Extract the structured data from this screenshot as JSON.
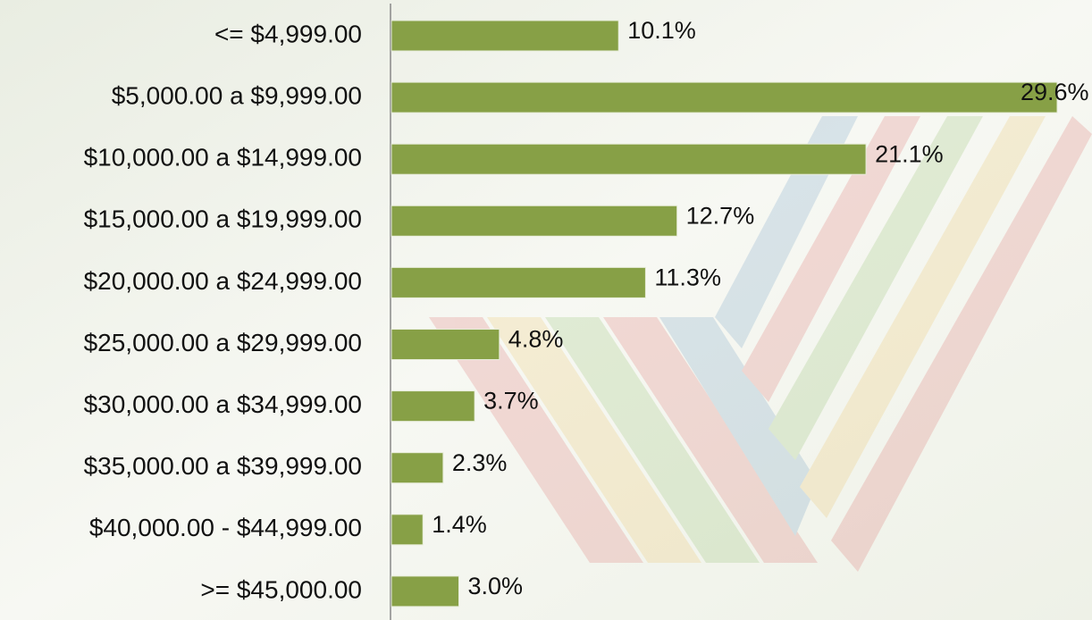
{
  "chart_data": {
    "type": "bar",
    "orientation": "horizontal",
    "categories": [
      "<= $4,999.00",
      "$5,000.00 a $9,999.00",
      "$10,000.00 a $14,999.00",
      "$15,000.00 a $19,999.00",
      "$20,000.00 a $24,999.00",
      "$25,000.00 a $29,999.00",
      "$30,000.00 a $34,999.00",
      "$35,000.00 a $39,999.00",
      "$40,000.00 - $44,999.00",
      ">= $45,000.00"
    ],
    "values": [
      10.1,
      29.6,
      21.1,
      12.7,
      11.3,
      4.8,
      3.7,
      2.3,
      1.4,
      3.0
    ],
    "value_labels": [
      "10.1%",
      "29.6%",
      "21.1%",
      "12.7%",
      "11.3%",
      "4.8%",
      "3.7%",
      "2.3%",
      "1.4%",
      "3.0%"
    ],
    "color": "#87a046"
  }
}
